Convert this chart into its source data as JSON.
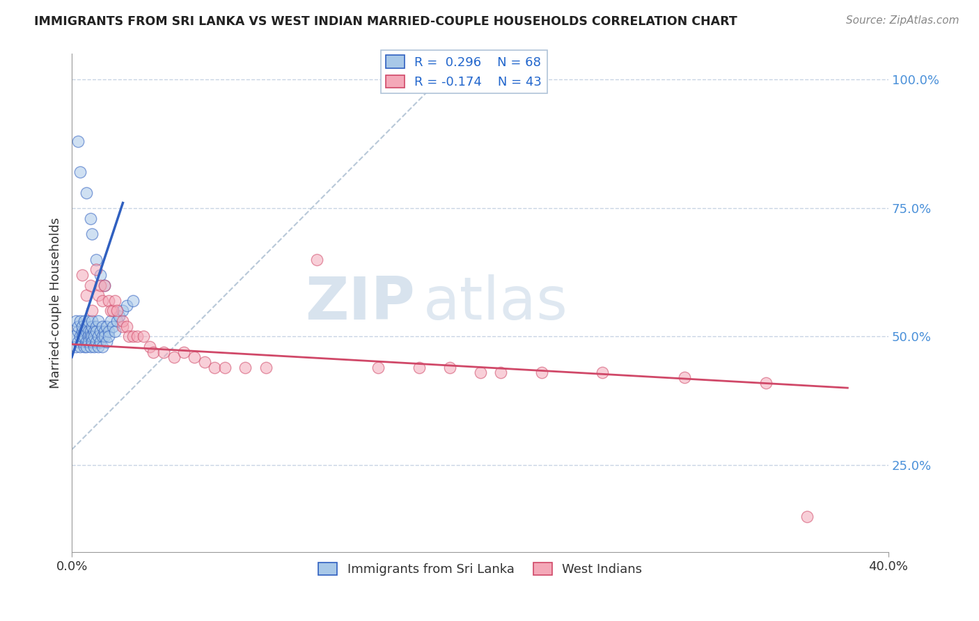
{
  "title": "IMMIGRANTS FROM SRI LANKA VS WEST INDIAN MARRIED-COUPLE HOUSEHOLDS CORRELATION CHART",
  "source": "Source: ZipAtlas.com",
  "ylabel": "Married-couple Households",
  "ylabel_right_labels": [
    "25.0%",
    "50.0%",
    "75.0%",
    "100.0%"
  ],
  "ylabel_right_values": [
    0.25,
    0.5,
    0.75,
    1.0
  ],
  "xmin": 0.0,
  "xmax": 0.4,
  "ymin": 0.1,
  "ymax": 1.05,
  "legend_r1": "R =  0.296",
  "legend_n1": "N = 68",
  "legend_r2": "R = -0.174",
  "legend_n2": "N = 43",
  "color_blue": "#a8c8e8",
  "color_pink": "#f4a8b8",
  "line_blue": "#3060c0",
  "line_pink": "#d04868",
  "line_diag": "#b8c8d8",
  "watermark_zip": "ZIP",
  "watermark_atlas": "atlas",
  "sri_lanka_x": [
    0.001,
    0.002,
    0.002,
    0.003,
    0.003,
    0.003,
    0.004,
    0.004,
    0.004,
    0.005,
    0.005,
    0.005,
    0.005,
    0.006,
    0.006,
    0.006,
    0.006,
    0.007,
    0.007,
    0.007,
    0.007,
    0.008,
    0.008,
    0.008,
    0.008,
    0.009,
    0.009,
    0.009,
    0.01,
    0.01,
    0.01,
    0.01,
    0.011,
    0.011,
    0.011,
    0.012,
    0.012,
    0.012,
    0.013,
    0.013,
    0.013,
    0.014,
    0.014,
    0.015,
    0.015,
    0.015,
    0.016,
    0.016,
    0.017,
    0.017,
    0.018,
    0.018,
    0.019,
    0.02,
    0.021,
    0.022,
    0.023,
    0.025,
    0.027,
    0.03,
    0.003,
    0.004,
    0.007,
    0.009,
    0.01,
    0.012,
    0.014,
    0.016
  ],
  "sri_lanka_y": [
    0.5,
    0.53,
    0.48,
    0.51,
    0.49,
    0.52,
    0.5,
    0.48,
    0.53,
    0.51,
    0.49,
    0.52,
    0.5,
    0.51,
    0.48,
    0.53,
    0.5,
    0.51,
    0.49,
    0.52,
    0.48,
    0.51,
    0.5,
    0.53,
    0.49,
    0.51,
    0.5,
    0.48,
    0.52,
    0.5,
    0.49,
    0.53,
    0.51,
    0.48,
    0.5,
    0.52,
    0.49,
    0.51,
    0.5,
    0.48,
    0.53,
    0.51,
    0.49,
    0.5,
    0.52,
    0.48,
    0.51,
    0.5,
    0.52,
    0.49,
    0.51,
    0.5,
    0.53,
    0.52,
    0.51,
    0.53,
    0.54,
    0.55,
    0.56,
    0.57,
    0.88,
    0.82,
    0.78,
    0.73,
    0.7,
    0.65,
    0.62,
    0.6
  ],
  "west_indian_x": [
    0.005,
    0.007,
    0.009,
    0.01,
    0.012,
    0.013,
    0.014,
    0.015,
    0.016,
    0.018,
    0.019,
    0.02,
    0.021,
    0.022,
    0.025,
    0.025,
    0.027,
    0.028,
    0.03,
    0.032,
    0.035,
    0.038,
    0.04,
    0.045,
    0.05,
    0.055,
    0.06,
    0.065,
    0.07,
    0.075,
    0.085,
    0.095,
    0.12,
    0.15,
    0.17,
    0.185,
    0.2,
    0.21,
    0.23,
    0.26,
    0.3,
    0.34,
    0.36
  ],
  "west_indian_y": [
    0.62,
    0.58,
    0.6,
    0.55,
    0.63,
    0.58,
    0.6,
    0.57,
    0.6,
    0.57,
    0.55,
    0.55,
    0.57,
    0.55,
    0.52,
    0.53,
    0.52,
    0.5,
    0.5,
    0.5,
    0.5,
    0.48,
    0.47,
    0.47,
    0.46,
    0.47,
    0.46,
    0.45,
    0.44,
    0.44,
    0.44,
    0.44,
    0.65,
    0.44,
    0.44,
    0.44,
    0.43,
    0.43,
    0.43,
    0.43,
    0.42,
    0.41,
    0.15
  ]
}
